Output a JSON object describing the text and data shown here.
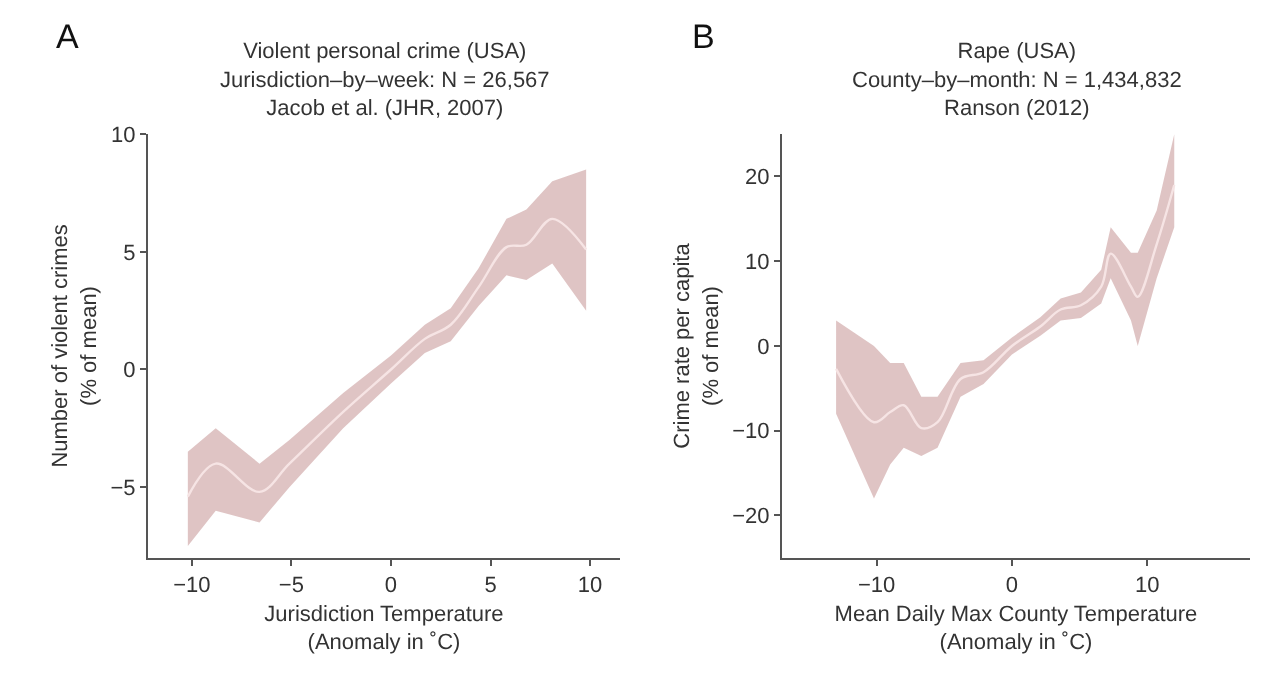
{
  "chart_data": [
    {
      "type": "line",
      "title": "Violent personal crime (USA)\nJurisdiction–by–week: N = 26,567\nJacob et al. (JHR, 2007)",
      "xlabel": "Jurisdiction Temperature\n(Anomaly in ˚C)",
      "ylabel": "Number of violent crimes\n(% of mean)",
      "annotations": [
        "A"
      ],
      "xlim": [
        -12.2,
        11.5
      ],
      "xticks": [
        -10,
        -5,
        0,
        5,
        10
      ],
      "ylim": [
        -8,
        10
      ],
      "yticks": [
        -5,
        0,
        5,
        10
      ],
      "marker": "none",
      "line_style": "solid",
      "series": [
        {
          "color": "#f6e4e4",
          "x": [
            -10.2,
            -8.8,
            -6.6,
            -5.1,
            -2.4,
            0,
            1.7,
            3.0,
            4.4,
            5.8,
            6.8,
            8.1,
            9.8
          ],
          "values": [
            -5.4,
            -4.0,
            -5.2,
            -4.0,
            -1.8,
            0,
            1.3,
            1.9,
            3.5,
            5.2,
            5.3,
            6.4,
            5.1
          ],
          "lower": [
            -7.5,
            -6.0,
            -6.5,
            -5.0,
            -2.5,
            -0.6,
            0.7,
            1.2,
            2.7,
            4.0,
            3.8,
            4.5,
            2.5
          ],
          "upper": [
            -3.5,
            -2.5,
            -4.0,
            -3.0,
            -1.0,
            0.6,
            1.9,
            2.6,
            4.3,
            6.4,
            6.8,
            8.0,
            8.5
          ]
        }
      ]
    },
    {
      "type": "line",
      "title": "Rape (USA)\nCounty–by–month: N = 1,434,832\nRanson (2012)",
      "xlabel": "Mean Daily Max County Temperature\n(Anomaly in ˚C)",
      "ylabel": "Crime rate per capita\n(% of mean)",
      "annotations": [
        "B"
      ],
      "xlim": [
        -17,
        17.6
      ],
      "xticks": [
        -10,
        0,
        10
      ],
      "ylim": [
        -25,
        25
      ],
      "yticks": [
        -20,
        -10,
        0,
        10,
        20
      ],
      "marker": "none",
      "line_style": "solid",
      "series": [
        {
          "color": "#f6e4e4",
          "x": [
            -13.0,
            -10.2,
            -9.0,
            -8.0,
            -6.7,
            -5.5,
            -3.8,
            -2.1,
            0,
            2.1,
            3.6,
            5.1,
            6.6,
            7.3,
            8.8,
            9.3,
            10.7,
            12.0
          ],
          "values": [
            -2.7,
            -9.0,
            -7.8,
            -7.0,
            -9.7,
            -9.0,
            -3.9,
            -3.1,
            0,
            2.3,
            4.3,
            4.8,
            7.0,
            10.9,
            7.0,
            5.8,
            12.0,
            19.0
          ],
          "lower": [
            -8,
            -18,
            -14,
            -12,
            -13,
            -12,
            -6,
            -4.5,
            -1,
            1.2,
            3.0,
            3.3,
            5.0,
            8,
            3,
            0,
            8,
            14
          ],
          "upper": [
            3,
            0,
            -2,
            -2,
            -6,
            -6,
            -2,
            -1.7,
            1,
            3.4,
            5.6,
            6.3,
            9.0,
            14,
            11,
            11,
            16,
            25
          ]
        }
      ]
    }
  ]
}
